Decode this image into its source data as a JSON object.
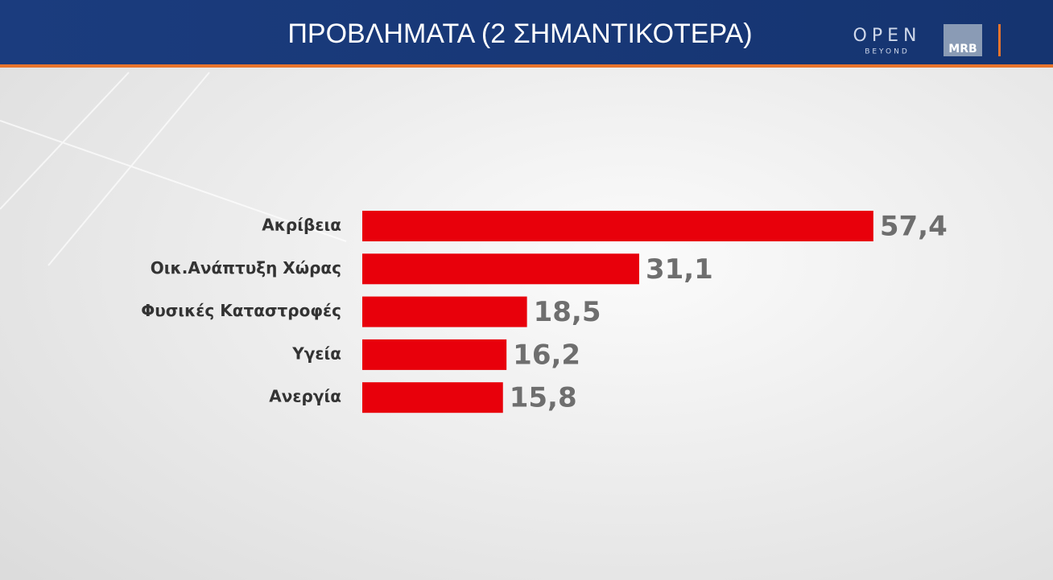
{
  "header": {
    "brand": "OPEN",
    "brand_tagline": "BEYOND",
    "pollster": "MRB"
  },
  "chart_data": {
    "type": "hbar",
    "title": "ΠΡΟΒΛΗΜΑΤΑ (2 ΣΗΜΑΝΤΙΚΟΤΕΡΑ)",
    "categories": [
      "Ακρίβεια",
      "Οικ.Ανάπτυξη Χώρας",
      "Φυσικές Καταστροφές",
      "Υγεία",
      "Ανεργία"
    ],
    "values": [
      57.4,
      31.1,
      18.5,
      16.2,
      15.8
    ],
    "value_labels": [
      "57,4",
      "31,1",
      "18,5",
      "16,2",
      "15,8"
    ],
    "color": "#e8000b"
  }
}
